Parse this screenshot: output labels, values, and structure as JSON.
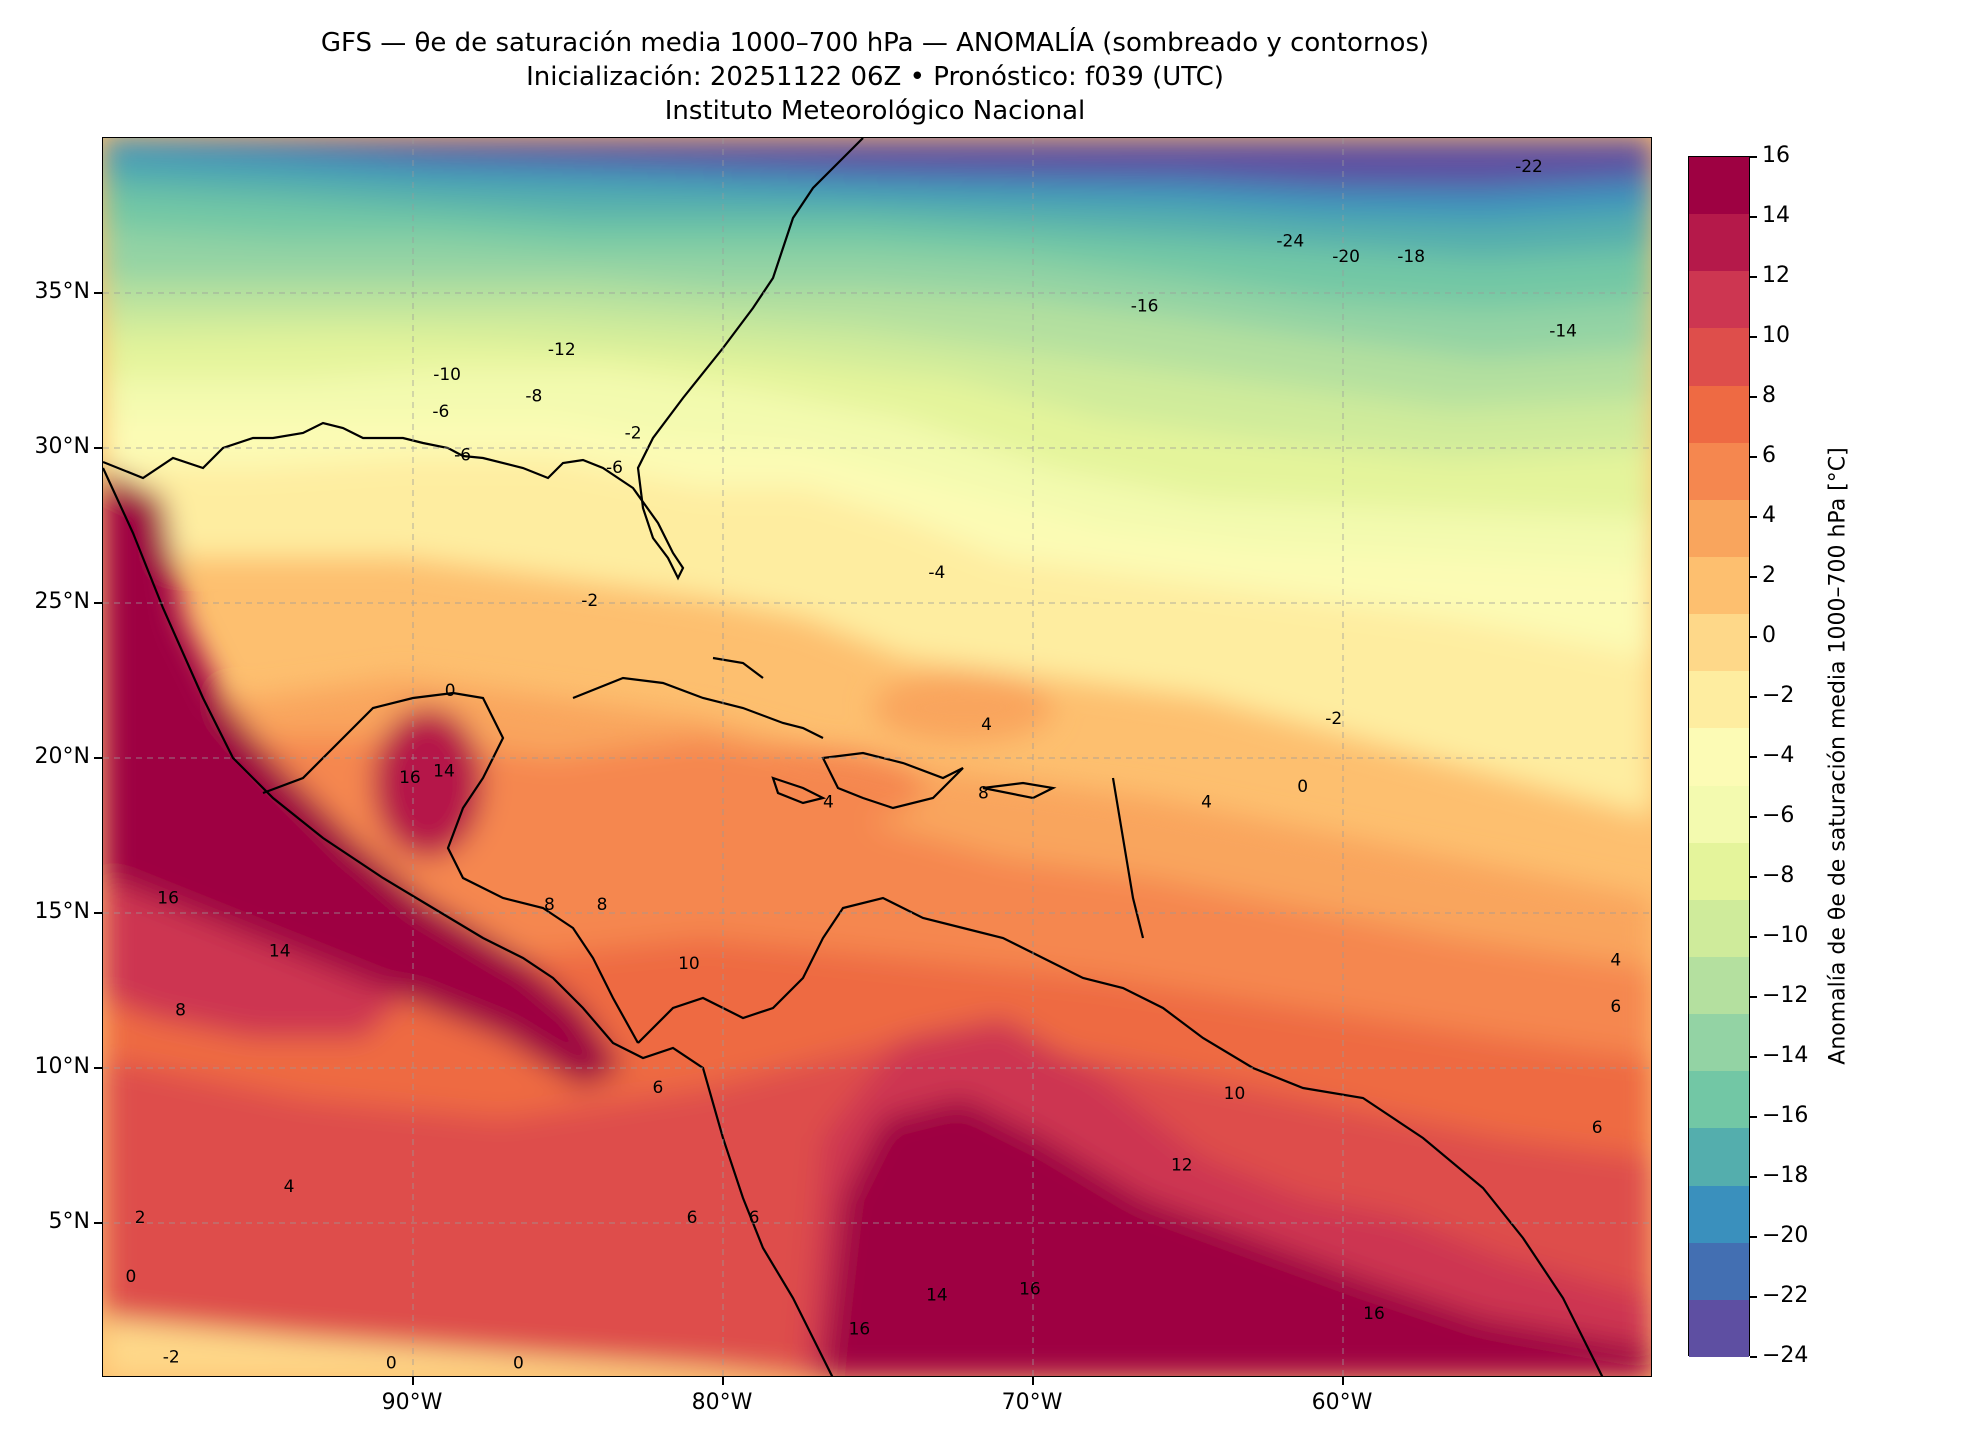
{
  "title": {
    "line1": "GFS — θe de saturación media 1000–700 hPa — ANOMALÍA (sombreado y contornos)",
    "line2": "Inicialización: 20251122 06Z   •   Pronóstico: f039 (UTC)",
    "line3": "Instituto Meteorológico Nacional"
  },
  "map": {
    "extent": {
      "lon_min": -100,
      "lon_max": -50,
      "lat_min": 0,
      "lat_max": 40
    },
    "lat_ticks": [
      {
        "value": 35,
        "label": "35°N"
      },
      {
        "value": 30,
        "label": "30°N"
      },
      {
        "value": 25,
        "label": "25°N"
      },
      {
        "value": 20,
        "label": "20°N"
      },
      {
        "value": 15,
        "label": "15°N"
      },
      {
        "value": 10,
        "label": "10°N"
      },
      {
        "value": 5,
        "label": "5°N"
      }
    ],
    "lon_ticks": [
      {
        "value": -90,
        "label": "90°W"
      },
      {
        "value": -80,
        "label": "80°W"
      },
      {
        "value": -70,
        "label": "70°W"
      },
      {
        "value": -60,
        "label": "60°W"
      }
    ],
    "gridlines": true,
    "contour_labels": [
      {
        "text": "-22",
        "lon": -54,
        "lat": 38.9
      },
      {
        "text": "-24",
        "lon": -61.7,
        "lat": 36.5
      },
      {
        "text": "-20",
        "lon": -59.9,
        "lat": 36.0
      },
      {
        "text": "-18",
        "lon": -57.8,
        "lat": 36.0
      },
      {
        "text": "-16",
        "lon": -66.4,
        "lat": 34.4
      },
      {
        "text": "-14",
        "lon": -52.9,
        "lat": 33.6
      },
      {
        "text": "-12",
        "lon": -85.2,
        "lat": 33.0
      },
      {
        "text": "-10",
        "lon": -88.9,
        "lat": 32.2
      },
      {
        "text": "-8",
        "lon": -86.1,
        "lat": 31.5
      },
      {
        "text": "-6",
        "lon": -89.1,
        "lat": 31.0
      },
      {
        "text": "-2",
        "lon": -82.9,
        "lat": 30.3
      },
      {
        "text": "-6",
        "lon": -88.4,
        "lat": 29.6
      },
      {
        "text": "-6",
        "lon": -83.5,
        "lat": 29.2
      },
      {
        "text": "-4",
        "lon": -73.1,
        "lat": 25.8
      },
      {
        "text": "-2",
        "lon": -84.3,
        "lat": 24.9
      },
      {
        "text": "0",
        "lon": -88.8,
        "lat": 22.0
      },
      {
        "text": "4",
        "lon": -71.5,
        "lat": 20.9
      },
      {
        "text": "-2",
        "lon": -60.3,
        "lat": 21.1
      },
      {
        "text": "16",
        "lon": -90.1,
        "lat": 19.2
      },
      {
        "text": "14",
        "lon": -89.0,
        "lat": 19.4
      },
      {
        "text": "8",
        "lon": -71.6,
        "lat": 18.7
      },
      {
        "text": "4",
        "lon": -76.6,
        "lat": 18.4
      },
      {
        "text": "4",
        "lon": -64.4,
        "lat": 18.4
      },
      {
        "text": "0",
        "lon": -61.3,
        "lat": 18.9
      },
      {
        "text": "16",
        "lon": -97.9,
        "lat": 15.3
      },
      {
        "text": "8",
        "lon": -85.6,
        "lat": 15.1
      },
      {
        "text": "8",
        "lon": -83.9,
        "lat": 15.1
      },
      {
        "text": "14",
        "lon": -94.3,
        "lat": 13.6
      },
      {
        "text": "10",
        "lon": -81.1,
        "lat": 13.2
      },
      {
        "text": "4",
        "lon": -51.2,
        "lat": 13.3
      },
      {
        "text": "6",
        "lon": -51.2,
        "lat": 11.8
      },
      {
        "text": "8",
        "lon": -97.5,
        "lat": 11.7
      },
      {
        "text": "10",
        "lon": -63.5,
        "lat": 9.0
      },
      {
        "text": "6",
        "lon": -82.1,
        "lat": 9.2
      },
      {
        "text": "6",
        "lon": -51.8,
        "lat": 7.9
      },
      {
        "text": "12",
        "lon": -65.2,
        "lat": 6.7
      },
      {
        "text": "4",
        "lon": -94.0,
        "lat": 6.0
      },
      {
        "text": "2",
        "lon": -98.8,
        "lat": 5.0
      },
      {
        "text": "6",
        "lon": -81.0,
        "lat": 5.0
      },
      {
        "text": "6",
        "lon": -79.0,
        "lat": 5.0
      },
      {
        "text": "0",
        "lon": -99.1,
        "lat": 3.1
      },
      {
        "text": "14",
        "lon": -73.1,
        "lat": 2.5
      },
      {
        "text": "16",
        "lon": -70.1,
        "lat": 2.7
      },
      {
        "text": "16",
        "lon": -59.0,
        "lat": 1.9
      },
      {
        "text": "16",
        "lon": -75.6,
        "lat": 1.4
      },
      {
        "text": "-2",
        "lon": -97.8,
        "lat": 0.5
      },
      {
        "text": "0",
        "lon": -90.7,
        "lat": 0.3
      },
      {
        "text": "0",
        "lon": -86.6,
        "lat": 0.3
      }
    ]
  },
  "colorbar": {
    "label": "Anomalía de θe de saturación media 1000–700 hPa [°C]",
    "ticks": [
      "16",
      "14",
      "12",
      "10",
      "8",
      "6",
      "4",
      "2",
      "0",
      "−2",
      "−4",
      "−6",
      "−8",
      "−10",
      "−12",
      "−14",
      "−16",
      "−18",
      "−20",
      "−22",
      "−24"
    ],
    "levels_top_to_bottom": [
      "#9e0142",
      "#b5194a",
      "#cd3651",
      "#de4e4b",
      "#ee6a43",
      "#f5874f",
      "#f9a55d",
      "#fdbf6f",
      "#fed889",
      "#feeda0",
      "#fcfbb5",
      "#f3faaf",
      "#e4f49b",
      "#cfeb9b",
      "#b4e09f",
      "#93d3a4",
      "#72c7a5",
      "#54aead",
      "#3a90bd",
      "#436fb2",
      "#5e4fa2"
    ]
  }
}
